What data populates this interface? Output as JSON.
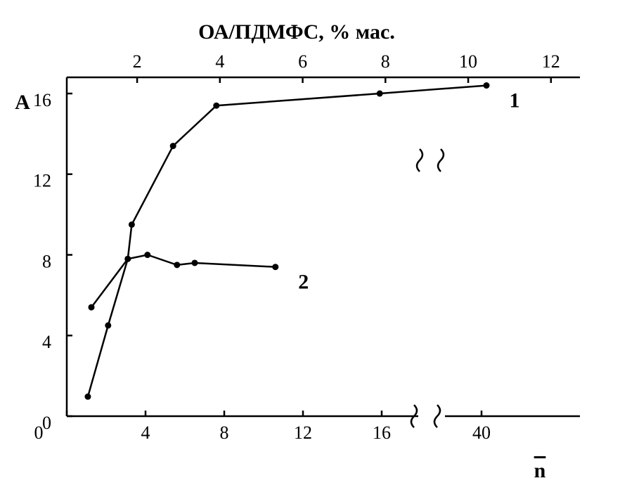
{
  "chart_data": {
    "type": "line",
    "title": "ОА/ПДМФС, % мас.",
    "y_label": "A",
    "x_label": "n",
    "xlim": [
      0,
      45
    ],
    "xbreak": [
      18,
      38
    ],
    "xticks": [
      0,
      4,
      8,
      12,
      16,
      40
    ],
    "x2lim": [
      0.3,
      12.7
    ],
    "x2ticks": [
      2,
      4,
      6,
      8,
      10,
      12
    ],
    "ylim": [
      0,
      17.5
    ],
    "yticks": [
      0,
      4,
      8,
      12,
      16
    ],
    "series": [
      {
        "name": "1",
        "color": "#000000",
        "x": [
          1.07,
          2.1,
          3.1,
          3.3,
          5.4,
          7.6,
          15.9,
          40.25
        ],
        "values": [
          0.97,
          4.5,
          7.8,
          9.5,
          13.4,
          15.4,
          16.0,
          16.4
        ]
      },
      {
        "name": "2",
        "color": "#000000",
        "x": [
          1.25,
          3.1,
          4.1,
          5.6,
          6.5,
          10.6
        ],
        "values": [
          5.4,
          7.8,
          8.0,
          7.5,
          7.6,
          7.4
        ]
      }
    ]
  }
}
